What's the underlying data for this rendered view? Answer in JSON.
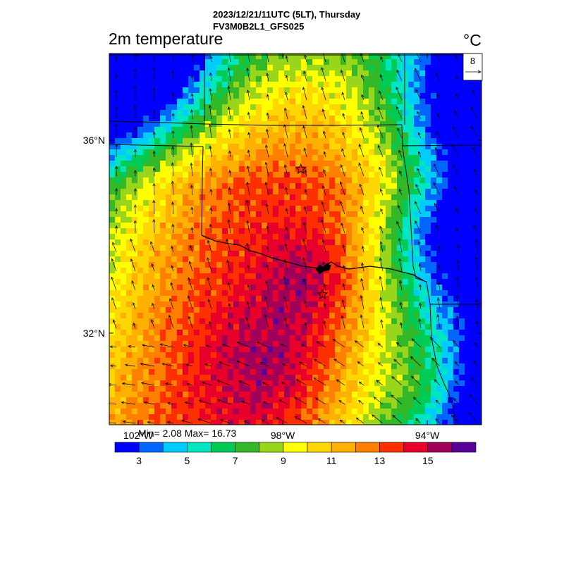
{
  "header": {
    "datetime": "2023/12/21/11UTC (5LT), Thursday",
    "model": "FV3M0B2L1_GFS025"
  },
  "field": {
    "title": "2m temperature",
    "unit": "°C",
    "min_label": "Min= 2.08 Max= 16.73"
  },
  "map": {
    "lon_min": -102.8,
    "lon_max": -92.5,
    "lat_min": 30.1,
    "lat_max": 37.8,
    "lon_ticks": [
      {
        "value": -102,
        "label": "102°W"
      },
      {
        "value": -98,
        "label": "98°W"
      },
      {
        "value": -94,
        "label": "94°W"
      }
    ],
    "lat_ticks": [
      {
        "value": 36,
        "label": "36°N"
      },
      {
        "value": 32,
        "label": "32°N"
      }
    ],
    "reference_vector": {
      "label": "8"
    },
    "cities": [
      {
        "name": "oklahoma-city-marker",
        "lon": -97.5,
        "lat": 35.4
      },
      {
        "name": "dallas-fort-worth-marker",
        "lon": -96.9,
        "lat": 32.8
      }
    ]
  },
  "colorbar": {
    "colors": [
      "#0000ff",
      "#0066ff",
      "#00ccff",
      "#00e6c0",
      "#00cc55",
      "#33b828",
      "#99d51a",
      "#ffff00",
      "#ffd700",
      "#ffb000",
      "#ff8000",
      "#ff3000",
      "#e8002a",
      "#a0005a",
      "#5a009a"
    ],
    "labels": [
      {
        "value": 3,
        "label": "3"
      },
      {
        "value": 5,
        "label": "5"
      },
      {
        "value": 7,
        "label": "7"
      },
      {
        "value": 9,
        "label": "9"
      },
      {
        "value": 11,
        "label": "11"
      },
      {
        "value": 13,
        "label": "13"
      },
      {
        "value": 15,
        "label": "15"
      }
    ],
    "min": 2,
    "max": 17
  }
}
